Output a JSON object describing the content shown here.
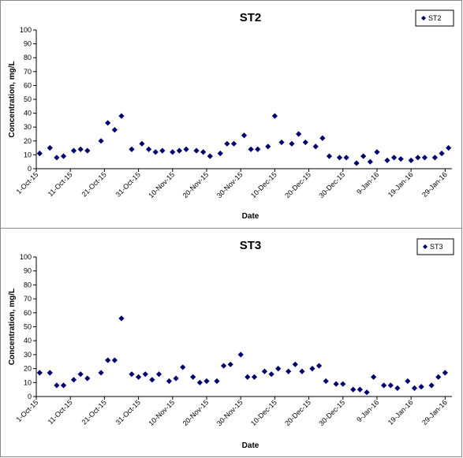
{
  "chart_data": [
    {
      "type": "scatter",
      "title": "ST2",
      "xlabel": "Date",
      "ylabel": "Concentration, mg/L",
      "ylim": [
        0,
        100
      ],
      "yticks": [
        "0",
        "10",
        "20",
        "30",
        "40",
        "50",
        "60",
        "70",
        "80",
        "90",
        "100"
      ],
      "xlim": [
        "2015-10-01",
        "2016-01-31"
      ],
      "xticks": [
        "1-Oct-15",
        "11-Oct-15",
        "21-Oct-15",
        "31-Oct-15",
        "10-Nov-15",
        "20-Nov-15",
        "30-Nov-15",
        "10-Dec-15",
        "20-Dec-15",
        "30-Dec-15",
        "9-Jan-16",
        "19-Jan-16",
        "29-Jan-16"
      ],
      "grid": false,
      "legend": "top-right",
      "series": [
        {
          "name": "ST2",
          "color": "#00006e",
          "marker": "diamond",
          "points": [
            {
              "x": "2015-10-02",
              "y": 11
            },
            {
              "x": "2015-10-05",
              "y": 15
            },
            {
              "x": "2015-10-07",
              "y": 8
            },
            {
              "x": "2015-10-09",
              "y": 9
            },
            {
              "x": "2015-10-12",
              "y": 13
            },
            {
              "x": "2015-10-14",
              "y": 14
            },
            {
              "x": "2015-10-16",
              "y": 13
            },
            {
              "x": "2015-10-20",
              "y": 20
            },
            {
              "x": "2015-10-22",
              "y": 33
            },
            {
              "x": "2015-10-24",
              "y": 28
            },
            {
              "x": "2015-10-26",
              "y": 38
            },
            {
              "x": "2015-10-29",
              "y": 14
            },
            {
              "x": "2015-11-01",
              "y": 18
            },
            {
              "x": "2015-11-03",
              "y": 14
            },
            {
              "x": "2015-11-05",
              "y": 12
            },
            {
              "x": "2015-11-07",
              "y": 13
            },
            {
              "x": "2015-11-10",
              "y": 12
            },
            {
              "x": "2015-11-12",
              "y": 13
            },
            {
              "x": "2015-11-14",
              "y": 14
            },
            {
              "x": "2015-11-17",
              "y": 13
            },
            {
              "x": "2015-11-19",
              "y": 12
            },
            {
              "x": "2015-11-21",
              "y": 9
            },
            {
              "x": "2015-11-24",
              "y": 11
            },
            {
              "x": "2015-11-26",
              "y": 18
            },
            {
              "x": "2015-11-28",
              "y": 18
            },
            {
              "x": "2015-12-01",
              "y": 24
            },
            {
              "x": "2015-12-03",
              "y": 14
            },
            {
              "x": "2015-12-05",
              "y": 14
            },
            {
              "x": "2015-12-08",
              "y": 16
            },
            {
              "x": "2015-12-10",
              "y": 38
            },
            {
              "x": "2015-12-12",
              "y": 19
            },
            {
              "x": "2015-12-15",
              "y": 18
            },
            {
              "x": "2015-12-17",
              "y": 25
            },
            {
              "x": "2015-12-19",
              "y": 19
            },
            {
              "x": "2015-12-22",
              "y": 16
            },
            {
              "x": "2015-12-24",
              "y": 22
            },
            {
              "x": "2015-12-26",
              "y": 9
            },
            {
              "x": "2015-12-29",
              "y": 8
            },
            {
              "x": "2015-12-31",
              "y": 8
            },
            {
              "x": "2016-01-03",
              "y": 4
            },
            {
              "x": "2016-01-05",
              "y": 9
            },
            {
              "x": "2016-01-07",
              "y": 5
            },
            {
              "x": "2016-01-09",
              "y": 12
            },
            {
              "x": "2016-01-12",
              "y": 6
            },
            {
              "x": "2016-01-14",
              "y": 8
            },
            {
              "x": "2016-01-16",
              "y": 7
            },
            {
              "x": "2016-01-19",
              "y": 6
            },
            {
              "x": "2016-01-21",
              "y": 8
            },
            {
              "x": "2016-01-23",
              "y": 8
            },
            {
              "x": "2016-01-26",
              "y": 8
            },
            {
              "x": "2016-01-28",
              "y": 11
            },
            {
              "x": "2016-01-30",
              "y": 15
            }
          ]
        }
      ]
    },
    {
      "type": "scatter",
      "title": "ST3",
      "xlabel": "Date",
      "ylabel": "Concentration, mg/L",
      "ylim": [
        0,
        100
      ],
      "yticks": [
        "0",
        "10",
        "20",
        "30",
        "40",
        "50",
        "60",
        "70",
        "80",
        "90",
        "100"
      ],
      "xlim": [
        "2015-10-01",
        "2016-01-31"
      ],
      "xticks": [
        "1-Oct-15",
        "11-Oct-15",
        "21-Oct-15",
        "31-Oct-15",
        "10-Nov-15",
        "20-Nov-15",
        "30-Nov-15",
        "10-Dec-15",
        "20-Dec-15",
        "30-Dec-15",
        "9-Jan-16",
        "19-Jan-16",
        "29-Jan-16"
      ],
      "grid": false,
      "legend": "top-right",
      "series": [
        {
          "name": "ST3",
          "color": "#00006e",
          "marker": "diamond",
          "points": [
            {
              "x": "2015-10-02",
              "y": 17
            },
            {
              "x": "2015-10-05",
              "y": 17
            },
            {
              "x": "2015-10-07",
              "y": 8
            },
            {
              "x": "2015-10-09",
              "y": 8
            },
            {
              "x": "2015-10-12",
              "y": 12
            },
            {
              "x": "2015-10-14",
              "y": 16
            },
            {
              "x": "2015-10-16",
              "y": 13
            },
            {
              "x": "2015-10-20",
              "y": 17
            },
            {
              "x": "2015-10-22",
              "y": 26
            },
            {
              "x": "2015-10-24",
              "y": 26
            },
            {
              "x": "2015-10-26",
              "y": 56
            },
            {
              "x": "2015-10-29",
              "y": 16
            },
            {
              "x": "2015-10-31",
              "y": 14
            },
            {
              "x": "2015-11-02",
              "y": 16
            },
            {
              "x": "2015-11-04",
              "y": 12
            },
            {
              "x": "2015-11-06",
              "y": 16
            },
            {
              "x": "2015-11-09",
              "y": 11
            },
            {
              "x": "2015-11-11",
              "y": 13
            },
            {
              "x": "2015-11-13",
              "y": 21
            },
            {
              "x": "2015-11-16",
              "y": 14
            },
            {
              "x": "2015-11-18",
              "y": 10
            },
            {
              "x": "2015-11-20",
              "y": 11
            },
            {
              "x": "2015-11-23",
              "y": 11
            },
            {
              "x": "2015-11-25",
              "y": 22
            },
            {
              "x": "2015-11-27",
              "y": 23
            },
            {
              "x": "2015-11-30",
              "y": 30
            },
            {
              "x": "2015-12-02",
              "y": 14
            },
            {
              "x": "2015-12-04",
              "y": 14
            },
            {
              "x": "2015-12-07",
              "y": 18
            },
            {
              "x": "2015-12-09",
              "y": 16
            },
            {
              "x": "2015-12-11",
              "y": 20
            },
            {
              "x": "2015-12-14",
              "y": 18
            },
            {
              "x": "2015-12-16",
              "y": 23
            },
            {
              "x": "2015-12-18",
              "y": 18
            },
            {
              "x": "2015-12-21",
              "y": 20
            },
            {
              "x": "2015-12-23",
              "y": 22
            },
            {
              "x": "2015-12-25",
              "y": 11
            },
            {
              "x": "2015-12-28",
              "y": 9
            },
            {
              "x": "2015-12-30",
              "y": 9
            },
            {
              "x": "2016-01-02",
              "y": 5
            },
            {
              "x": "2016-01-04",
              "y": 5
            },
            {
              "x": "2016-01-06",
              "y": 3
            },
            {
              "x": "2016-01-08",
              "y": 14
            },
            {
              "x": "2016-01-11",
              "y": 8
            },
            {
              "x": "2016-01-13",
              "y": 8
            },
            {
              "x": "2016-01-15",
              "y": 6
            },
            {
              "x": "2016-01-18",
              "y": 11
            },
            {
              "x": "2016-01-20",
              "y": 6
            },
            {
              "x": "2016-01-22",
              "y": 7
            },
            {
              "x": "2016-01-25",
              "y": 8
            },
            {
              "x": "2016-01-27",
              "y": 14
            },
            {
              "x": "2016-01-29",
              "y": 17
            }
          ]
        }
      ]
    }
  ]
}
